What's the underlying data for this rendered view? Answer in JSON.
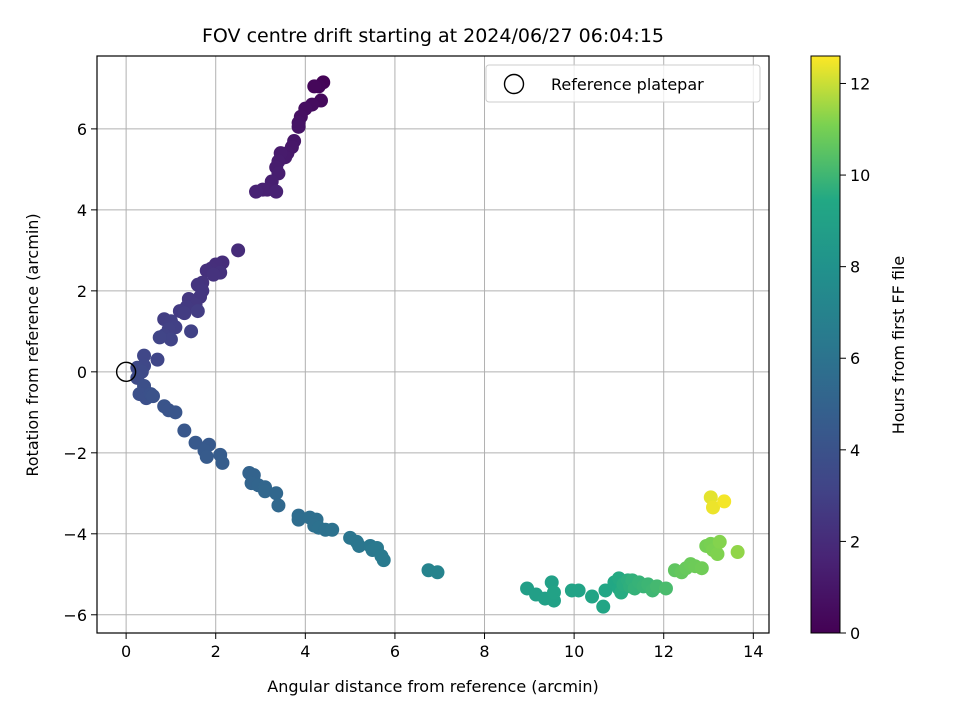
{
  "chart_data": {
    "type": "scatter",
    "title": "FOV centre drift starting at 2024/06/27 06:04:15",
    "xlabel": "Angular distance from reference (arcmin)",
    "ylabel": "Rotation from reference (arcmin)",
    "xlim": [
      -0.65,
      14.35
    ],
    "ylim": [
      -6.45,
      7.8
    ],
    "xticks": [
      0,
      2,
      4,
      6,
      8,
      10,
      12,
      14
    ],
    "yticks": [
      -6,
      -4,
      -2,
      0,
      2,
      4,
      6
    ],
    "grid": true,
    "legend": {
      "position": "top-right",
      "entries": [
        "Reference platepar"
      ]
    },
    "reference_point": {
      "x": 0,
      "y": 0,
      "label": "Reference platepar",
      "marker": "open-circle"
    },
    "colorbar": {
      "label": "Hours from first FF file",
      "colormap": "viridis",
      "range": [
        0,
        12.6
      ],
      "ticks": [
        0,
        2,
        4,
        6,
        8,
        10,
        12
      ]
    },
    "points": [
      {
        "x": 4.4,
        "y": 7.15,
        "c": 0.1
      },
      {
        "x": 4.3,
        "y": 7.05,
        "c": 0.2
      },
      {
        "x": 4.2,
        "y": 7.05,
        "c": 0.3
      },
      {
        "x": 4.35,
        "y": 6.7,
        "c": 0.4
      },
      {
        "x": 4.15,
        "y": 6.6,
        "c": 0.5
      },
      {
        "x": 4.0,
        "y": 6.5,
        "c": 0.6
      },
      {
        "x": 3.9,
        "y": 6.3,
        "c": 0.7
      },
      {
        "x": 3.85,
        "y": 6.15,
        "c": 0.8
      },
      {
        "x": 3.85,
        "y": 6.05,
        "c": 0.9
      },
      {
        "x": 3.75,
        "y": 5.7,
        "c": 1.0
      },
      {
        "x": 3.7,
        "y": 5.55,
        "c": 1.05
      },
      {
        "x": 3.6,
        "y": 5.4,
        "c": 1.1
      },
      {
        "x": 3.55,
        "y": 5.3,
        "c": 1.15
      },
      {
        "x": 3.45,
        "y": 5.4,
        "c": 1.2
      },
      {
        "x": 3.4,
        "y": 5.2,
        "c": 1.25
      },
      {
        "x": 3.35,
        "y": 5.05,
        "c": 1.3
      },
      {
        "x": 3.4,
        "y": 4.9,
        "c": 1.35
      },
      {
        "x": 3.25,
        "y": 4.7,
        "c": 1.4
      },
      {
        "x": 3.15,
        "y": 4.5,
        "c": 1.45
      },
      {
        "x": 3.05,
        "y": 4.5,
        "c": 1.5
      },
      {
        "x": 3.35,
        "y": 4.45,
        "c": 1.55
      },
      {
        "x": 2.9,
        "y": 4.45,
        "c": 1.6
      },
      {
        "x": 2.5,
        "y": 3.0,
        "c": 2.0
      },
      {
        "x": 2.15,
        "y": 2.7,
        "c": 2.05
      },
      {
        "x": 2.0,
        "y": 2.65,
        "c": 2.1
      },
      {
        "x": 1.9,
        "y": 2.55,
        "c": 2.15
      },
      {
        "x": 1.8,
        "y": 2.5,
        "c": 2.2
      },
      {
        "x": 2.1,
        "y": 2.45,
        "c": 2.25
      },
      {
        "x": 1.95,
        "y": 2.4,
        "c": 2.3
      },
      {
        "x": 1.7,
        "y": 2.2,
        "c": 2.35
      },
      {
        "x": 1.6,
        "y": 2.15,
        "c": 2.4
      },
      {
        "x": 1.7,
        "y": 2.0,
        "c": 2.45
      },
      {
        "x": 1.65,
        "y": 1.85,
        "c": 2.5
      },
      {
        "x": 1.4,
        "y": 1.8,
        "c": 2.55
      },
      {
        "x": 1.55,
        "y": 1.65,
        "c": 2.6
      },
      {
        "x": 1.35,
        "y": 1.6,
        "c": 2.65
      },
      {
        "x": 1.2,
        "y": 1.5,
        "c": 2.7
      },
      {
        "x": 1.3,
        "y": 1.45,
        "c": 2.75
      },
      {
        "x": 1.6,
        "y": 1.5,
        "c": 2.8
      },
      {
        "x": 0.85,
        "y": 1.3,
        "c": 2.85
      },
      {
        "x": 1.0,
        "y": 1.25,
        "c": 2.9
      },
      {
        "x": 1.1,
        "y": 1.1,
        "c": 2.95
      },
      {
        "x": 0.95,
        "y": 1.05,
        "c": 3.0
      },
      {
        "x": 1.45,
        "y": 1.0,
        "c": 3.05
      },
      {
        "x": 0.85,
        "y": 0.9,
        "c": 3.1
      },
      {
        "x": 1.0,
        "y": 0.8,
        "c": 3.15
      },
      {
        "x": 0.75,
        "y": 0.85,
        "c": 3.2
      },
      {
        "x": 0.7,
        "y": 0.3,
        "c": 3.3
      },
      {
        "x": 0.4,
        "y": 0.4,
        "c": 3.35
      },
      {
        "x": 0.4,
        "y": 0.15,
        "c": 3.4
      },
      {
        "x": 0.25,
        "y": 0.1,
        "c": 3.45
      },
      {
        "x": 0.35,
        "y": 0.0,
        "c": 3.5
      },
      {
        "x": 0.25,
        "y": -0.15,
        "c": 3.55
      },
      {
        "x": 0.4,
        "y": -0.35,
        "c": 3.8
      },
      {
        "x": 0.3,
        "y": -0.55,
        "c": 3.85
      },
      {
        "x": 0.45,
        "y": -0.65,
        "c": 3.9
      },
      {
        "x": 0.55,
        "y": -0.55,
        "c": 3.95
      },
      {
        "x": 0.6,
        "y": -0.6,
        "c": 4.0
      },
      {
        "x": 0.85,
        "y": -0.85,
        "c": 4.1
      },
      {
        "x": 0.95,
        "y": -0.95,
        "c": 4.15
      },
      {
        "x": 1.1,
        "y": -1.0,
        "c": 4.2
      },
      {
        "x": 1.3,
        "y": -1.45,
        "c": 4.3
      },
      {
        "x": 1.55,
        "y": -1.75,
        "c": 4.4
      },
      {
        "x": 1.85,
        "y": -1.8,
        "c": 4.45
      },
      {
        "x": 1.75,
        "y": -1.95,
        "c": 4.5
      },
      {
        "x": 1.8,
        "y": -2.1,
        "c": 4.55
      },
      {
        "x": 2.1,
        "y": -2.05,
        "c": 4.6
      },
      {
        "x": 2.15,
        "y": -2.25,
        "c": 4.65
      },
      {
        "x": 2.75,
        "y": -2.5,
        "c": 5.0
      },
      {
        "x": 2.85,
        "y": -2.55,
        "c": 5.05
      },
      {
        "x": 2.8,
        "y": -2.75,
        "c": 5.1
      },
      {
        "x": 2.95,
        "y": -2.8,
        "c": 5.15
      },
      {
        "x": 3.1,
        "y": -2.85,
        "c": 5.2
      },
      {
        "x": 3.1,
        "y": -2.95,
        "c": 5.25
      },
      {
        "x": 3.35,
        "y": -3.0,
        "c": 5.3
      },
      {
        "x": 3.4,
        "y": -3.3,
        "c": 5.35
      },
      {
        "x": 3.85,
        "y": -3.55,
        "c": 5.6
      },
      {
        "x": 3.85,
        "y": -3.65,
        "c": 5.65
      },
      {
        "x": 4.1,
        "y": -3.6,
        "c": 5.7
      },
      {
        "x": 4.25,
        "y": -3.65,
        "c": 5.75
      },
      {
        "x": 4.2,
        "y": -3.8,
        "c": 5.8
      },
      {
        "x": 4.3,
        "y": -3.85,
        "c": 5.85
      },
      {
        "x": 4.45,
        "y": -3.9,
        "c": 5.9
      },
      {
        "x": 4.6,
        "y": -3.9,
        "c": 5.95
      },
      {
        "x": 5.0,
        "y": -4.1,
        "c": 6.1
      },
      {
        "x": 5.15,
        "y": -4.2,
        "c": 6.15
      },
      {
        "x": 5.2,
        "y": -4.3,
        "c": 6.2
      },
      {
        "x": 5.45,
        "y": -4.3,
        "c": 6.25
      },
      {
        "x": 5.5,
        "y": -4.4,
        "c": 6.3
      },
      {
        "x": 5.6,
        "y": -4.35,
        "c": 6.35
      },
      {
        "x": 5.7,
        "y": -4.55,
        "c": 6.4
      },
      {
        "x": 5.75,
        "y": -4.65,
        "c": 6.45
      },
      {
        "x": 6.75,
        "y": -4.9,
        "c": 7.0
      },
      {
        "x": 6.95,
        "y": -4.95,
        "c": 7.05
      },
      {
        "x": 8.95,
        "y": -5.35,
        "c": 8.8
      },
      {
        "x": 9.15,
        "y": -5.5,
        "c": 8.85
      },
      {
        "x": 9.35,
        "y": -5.6,
        "c": 8.9
      },
      {
        "x": 9.5,
        "y": -5.2,
        "c": 8.95
      },
      {
        "x": 9.55,
        "y": -5.65,
        "c": 9.0
      },
      {
        "x": 9.55,
        "y": -5.45,
        "c": 9.05
      },
      {
        "x": 9.95,
        "y": -5.4,
        "c": 9.1
      },
      {
        "x": 10.1,
        "y": -5.4,
        "c": 9.15
      },
      {
        "x": 10.4,
        "y": -5.55,
        "c": 9.2
      },
      {
        "x": 10.65,
        "y": -5.8,
        "c": 9.25
      },
      {
        "x": 10.7,
        "y": -5.4,
        "c": 9.3
      },
      {
        "x": 10.9,
        "y": -5.2,
        "c": 9.4
      },
      {
        "x": 11.0,
        "y": -5.35,
        "c": 9.45
      },
      {
        "x": 11.0,
        "y": -5.1,
        "c": 9.5
      },
      {
        "x": 11.05,
        "y": -5.45,
        "c": 9.55
      },
      {
        "x": 11.1,
        "y": -5.25,
        "c": 9.6
      },
      {
        "x": 11.2,
        "y": -5.15,
        "c": 9.65
      },
      {
        "x": 11.25,
        "y": -5.3,
        "c": 9.7
      },
      {
        "x": 11.3,
        "y": -5.15,
        "c": 9.75
      },
      {
        "x": 11.35,
        "y": -5.35,
        "c": 9.8
      },
      {
        "x": 11.45,
        "y": -5.2,
        "c": 9.85
      },
      {
        "x": 11.55,
        "y": -5.3,
        "c": 9.9
      },
      {
        "x": 11.65,
        "y": -5.25,
        "c": 9.95
      },
      {
        "x": 11.75,
        "y": -5.4,
        "c": 10.0
      },
      {
        "x": 11.85,
        "y": -5.3,
        "c": 10.1
      },
      {
        "x": 12.05,
        "y": -5.35,
        "c": 10.2
      },
      {
        "x": 12.25,
        "y": -4.9,
        "c": 10.6
      },
      {
        "x": 12.4,
        "y": -4.95,
        "c": 10.7
      },
      {
        "x": 12.5,
        "y": -4.85,
        "c": 10.75
      },
      {
        "x": 12.6,
        "y": -4.75,
        "c": 10.8
      },
      {
        "x": 12.7,
        "y": -4.8,
        "c": 10.85
      },
      {
        "x": 12.85,
        "y": -4.85,
        "c": 10.9
      },
      {
        "x": 12.95,
        "y": -4.3,
        "c": 11.0
      },
      {
        "x": 13.05,
        "y": -4.25,
        "c": 11.05
      },
      {
        "x": 13.1,
        "y": -4.4,
        "c": 11.1
      },
      {
        "x": 13.2,
        "y": -4.5,
        "c": 11.15
      },
      {
        "x": 13.25,
        "y": -4.2,
        "c": 11.2
      },
      {
        "x": 13.65,
        "y": -4.45,
        "c": 11.35
      },
      {
        "x": 13.05,
        "y": -3.1,
        "c": 12.3
      },
      {
        "x": 13.1,
        "y": -3.35,
        "c": 12.4
      },
      {
        "x": 13.35,
        "y": -3.2,
        "c": 12.5
      }
    ]
  }
}
